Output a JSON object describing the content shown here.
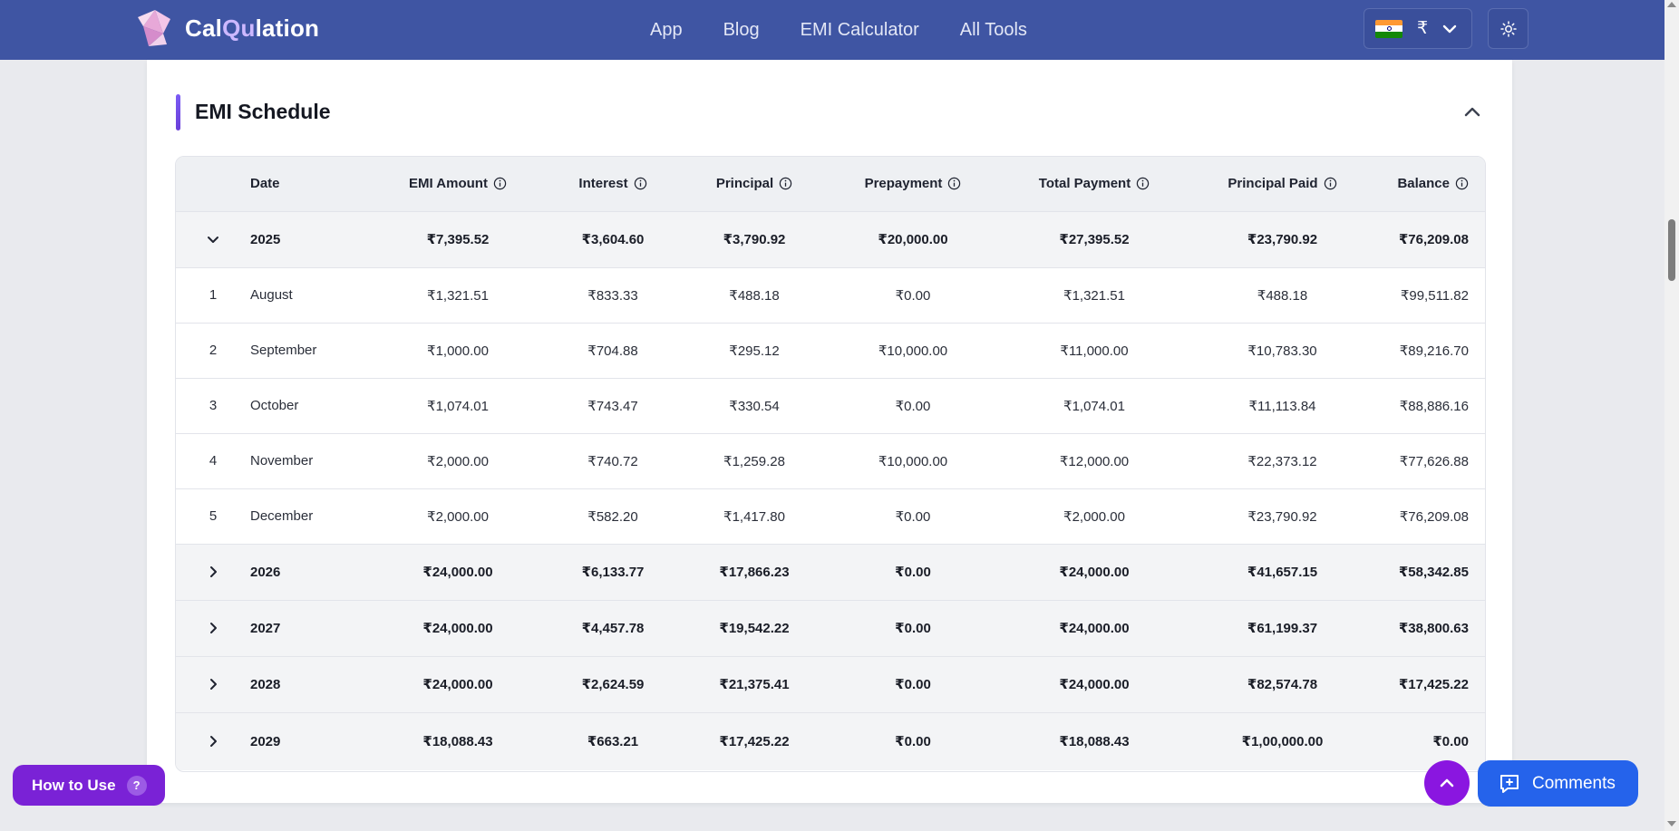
{
  "header": {
    "brand_prefix": "Cal",
    "brand_highlight": "Qu",
    "brand_suffix": "lation",
    "nav": [
      "App",
      "Blog",
      "EMI Calculator",
      "All Tools"
    ],
    "currency_symbol": "₹",
    "flag_country": "India"
  },
  "section": {
    "title": "EMI Schedule"
  },
  "table": {
    "columns": [
      "Date",
      "EMI Amount",
      "Interest",
      "Principal",
      "Prepayment",
      "Total Payment",
      "Principal Paid",
      "Balance"
    ],
    "rows": [
      {
        "kind": "year",
        "expanded": true,
        "index": "",
        "date": "2025",
        "emi": "₹7,395.52",
        "interest": "₹3,604.60",
        "principal": "₹3,790.92",
        "prepayment": "₹20,000.00",
        "total": "₹27,395.52",
        "principal_paid": "₹23,790.92",
        "balance": "₹76,209.08"
      },
      {
        "kind": "month",
        "index": "1",
        "date": "August",
        "emi": "₹1,321.51",
        "interest": "₹833.33",
        "principal": "₹488.18",
        "prepayment": "₹0.00",
        "total": "₹1,321.51",
        "principal_paid": "₹488.18",
        "balance": "₹99,511.82"
      },
      {
        "kind": "month",
        "index": "2",
        "date": "September",
        "emi": "₹1,000.00",
        "interest": "₹704.88",
        "principal": "₹295.12",
        "prepayment": "₹10,000.00",
        "total": "₹11,000.00",
        "principal_paid": "₹10,783.30",
        "balance": "₹89,216.70"
      },
      {
        "kind": "month",
        "index": "3",
        "date": "October",
        "emi": "₹1,074.01",
        "interest": "₹743.47",
        "principal": "₹330.54",
        "prepayment": "₹0.00",
        "total": "₹1,074.01",
        "principal_paid": "₹11,113.84",
        "balance": "₹88,886.16"
      },
      {
        "kind": "month",
        "index": "4",
        "date": "November",
        "emi": "₹2,000.00",
        "interest": "₹740.72",
        "principal": "₹1,259.28",
        "prepayment": "₹10,000.00",
        "total": "₹12,000.00",
        "principal_paid": "₹22,373.12",
        "balance": "₹77,626.88"
      },
      {
        "kind": "month",
        "index": "5",
        "date": "December",
        "emi": "₹2,000.00",
        "interest": "₹582.20",
        "principal": "₹1,417.80",
        "prepayment": "₹0.00",
        "total": "₹2,000.00",
        "principal_paid": "₹23,790.92",
        "balance": "₹76,209.08"
      },
      {
        "kind": "year",
        "expanded": false,
        "index": "",
        "date": "2026",
        "emi": "₹24,000.00",
        "interest": "₹6,133.77",
        "principal": "₹17,866.23",
        "prepayment": "₹0.00",
        "total": "₹24,000.00",
        "principal_paid": "₹41,657.15",
        "balance": "₹58,342.85"
      },
      {
        "kind": "year",
        "expanded": false,
        "index": "",
        "date": "2027",
        "emi": "₹24,000.00",
        "interest": "₹4,457.78",
        "principal": "₹19,542.22",
        "prepayment": "₹0.00",
        "total": "₹24,000.00",
        "principal_paid": "₹61,199.37",
        "balance": "₹38,800.63"
      },
      {
        "kind": "year",
        "expanded": false,
        "index": "",
        "date": "2028",
        "emi": "₹24,000.00",
        "interest": "₹2,624.59",
        "principal": "₹21,375.41",
        "prepayment": "₹0.00",
        "total": "₹24,000.00",
        "principal_paid": "₹82,574.78",
        "balance": "₹17,425.22"
      },
      {
        "kind": "year",
        "expanded": false,
        "index": "",
        "date": "2029",
        "emi": "₹18,088.43",
        "interest": "₹663.21",
        "principal": "₹17,425.22",
        "prepayment": "₹0.00",
        "total": "₹18,088.43",
        "principal_paid": "₹1,00,000.00",
        "balance": "₹0.00"
      }
    ]
  },
  "floating": {
    "how_to_use": "How to Use",
    "how_to_use_badge": "?",
    "comments": "Comments"
  },
  "colors": {
    "header_bg": "#3f55a3",
    "accent_purple": "#7a22d6",
    "comments_blue": "#2563eb"
  }
}
